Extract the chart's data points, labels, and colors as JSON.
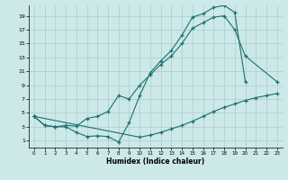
{
  "xlabel": "Humidex (Indice chaleur)",
  "bg_color": "#cce8e8",
  "grid_color": "#aacccc",
  "line_color": "#1a7070",
  "xlim": [
    -0.5,
    23.5
  ],
  "ylim": [
    0,
    20.5
  ],
  "xticks": [
    0,
    1,
    2,
    3,
    4,
    5,
    6,
    7,
    8,
    9,
    10,
    11,
    12,
    13,
    14,
    15,
    16,
    17,
    18,
    19,
    20,
    21,
    22,
    23
  ],
  "yticks": [
    1,
    3,
    5,
    7,
    9,
    11,
    13,
    15,
    17,
    19
  ],
  "line1_x": [
    0,
    1,
    2,
    3,
    4,
    5,
    6,
    7,
    8,
    9,
    10,
    11,
    12,
    13,
    14,
    15,
    16,
    17,
    18,
    19,
    20
  ],
  "line1_y": [
    4.5,
    3.2,
    3.0,
    3.0,
    2.2,
    1.6,
    1.7,
    1.6,
    0.8,
    3.6,
    7.5,
    10.8,
    12.5,
    14.0,
    16.2,
    18.8,
    19.3,
    20.2,
    20.5,
    19.5,
    9.5
  ],
  "line2_x": [
    0,
    1,
    2,
    3,
    4,
    5,
    6,
    7,
    8,
    9,
    10,
    11,
    12,
    13,
    14,
    15,
    16,
    17,
    18,
    19,
    20,
    23
  ],
  "line2_y": [
    4.5,
    3.2,
    3.0,
    3.2,
    3.1,
    4.2,
    4.5,
    5.2,
    7.5,
    7.0,
    9.0,
    10.5,
    12.0,
    13.2,
    15.0,
    17.2,
    18.0,
    18.8,
    19.0,
    17.0,
    13.2,
    9.5
  ],
  "line3_x": [
    0,
    10,
    11,
    12,
    13,
    14,
    15,
    16,
    17,
    18,
    19,
    20,
    21,
    22,
    23
  ],
  "line3_y": [
    4.5,
    1.5,
    1.8,
    2.2,
    2.7,
    3.2,
    3.8,
    4.5,
    5.2,
    5.8,
    6.3,
    6.8,
    7.2,
    7.5,
    7.8
  ]
}
